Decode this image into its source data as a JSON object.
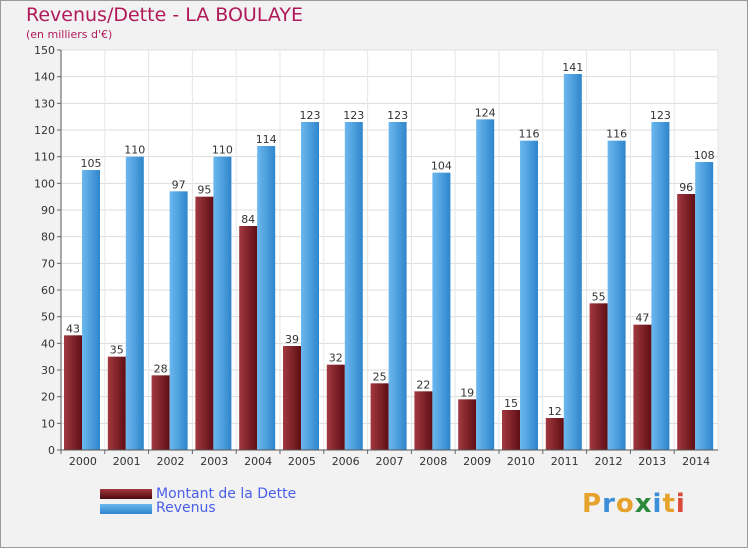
{
  "title": "Revenus/Dette - LA BOULAYE",
  "subtitle": "(en milliers d'€)",
  "logo": {
    "p": "P",
    "r": "r",
    "o": "o",
    "x": "x",
    "i": "i",
    "t": "t",
    "i2": "i"
  },
  "colors": {
    "dette": "#7a1c22",
    "revenus": "#4aa3e6",
    "title": "#b01a5a"
  },
  "chart_data": {
    "type": "bar",
    "title": "Revenus/Dette - LA BOULAYE",
    "subtitle": "(en milliers d'€)",
    "xlabel": "",
    "ylabel": "",
    "ylim": [
      0,
      150
    ],
    "yticks": [
      0,
      10,
      20,
      30,
      40,
      50,
      60,
      70,
      80,
      90,
      100,
      110,
      120,
      130,
      140,
      150
    ],
    "grid": true,
    "legend_position": "bottom-left",
    "categories": [
      "2000",
      "2001",
      "2002",
      "2003",
      "2004",
      "2005",
      "2006",
      "2007",
      "2008",
      "2009",
      "2010",
      "2011",
      "2012",
      "2013",
      "2014"
    ],
    "series": [
      {
        "name": "Montant de la Dette",
        "values": [
          43,
          35,
          28,
          95,
          84,
          39,
          32,
          25,
          22,
          19,
          15,
          12,
          55,
          47,
          96
        ]
      },
      {
        "name": "Revenus",
        "values": [
          105,
          110,
          97,
          110,
          114,
          123,
          123,
          123,
          104,
          124,
          116,
          141,
          116,
          123,
          108
        ]
      }
    ]
  }
}
